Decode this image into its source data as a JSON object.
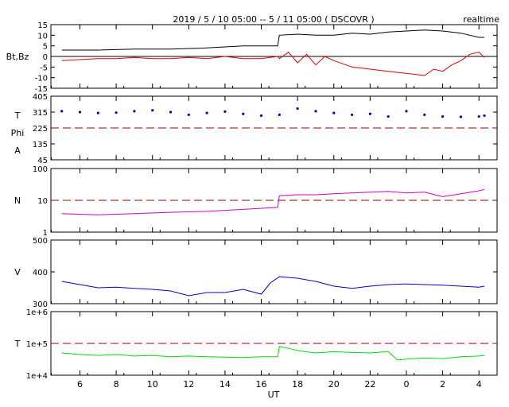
{
  "title": "2019 / 5 / 10   05:00 -- 5 / 11   05:00 ( DSCOVR )",
  "badge": "realtime",
  "xlabel": "UT",
  "x_ticks": [
    "6",
    "8",
    "10",
    "12",
    "14",
    "16",
    "18",
    "20",
    "22",
    "0",
    "2",
    "4"
  ],
  "chart_data": [
    {
      "type": "line",
      "name_label": "Bt,Bz",
      "x_unit": "hours since 05:00 UT",
      "ylim": [
        -15,
        15
      ],
      "y_ticks": [
        "15",
        "10",
        "5",
        "0",
        "-5",
        "-10",
        "-15"
      ],
      "ref_line": 0,
      "series": [
        {
          "name": "Bt",
          "color": "#000000",
          "x": [
            0,
            2,
            4,
            6,
            8,
            10,
            11.9,
            12.0,
            13,
            14,
            15,
            16,
            17,
            18,
            19,
            20,
            21,
            22,
            23,
            23.3
          ],
          "values": [
            3,
            3,
            3.5,
            3.5,
            4,
            5,
            5,
            10,
            10.5,
            10,
            10,
            11,
            10.5,
            11.5,
            12,
            12.5,
            12,
            11,
            9,
            9
          ]
        },
        {
          "name": "Bz",
          "color": "#dd0000",
          "x": [
            0,
            1,
            2,
            3,
            4,
            5,
            6,
            7,
            8,
            9,
            10,
            11,
            11.9,
            12.0,
            12.5,
            13,
            13.5,
            14,
            14.5,
            15,
            16,
            17,
            18,
            19,
            20,
            20.5,
            21,
            21.5,
            22,
            22.5,
            23,
            23.3
          ],
          "values": [
            -2,
            -1.5,
            -1,
            -1,
            -0.5,
            -1,
            -1,
            -0.5,
            -1,
            0,
            -1,
            -1,
            0,
            -1,
            2,
            -3,
            1,
            -4,
            0,
            -2,
            -5,
            -6,
            -7,
            -8,
            -9,
            -6,
            -7,
            -4,
            -2,
            1,
            2,
            -0.5
          ]
        }
      ]
    },
    {
      "type": "scatter",
      "name_label": [
        "T",
        "Phi",
        "A"
      ],
      "ylim": [
        45,
        405
      ],
      "y_ticks": [
        "405",
        "315",
        "225",
        "135",
        "45"
      ],
      "ref_line": 225,
      "series": [
        {
          "name": "Phi",
          "color": "#0000cc",
          "x": [
            0,
            1,
            2,
            3,
            4,
            5,
            6,
            7,
            8,
            9,
            10,
            11,
            12,
            13,
            14,
            15,
            16,
            17,
            18,
            19,
            20,
            21,
            22,
            23,
            23.3
          ],
          "values": [
            320,
            315,
            310,
            312,
            320,
            325,
            315,
            300,
            310,
            318,
            305,
            295,
            300,
            335,
            320,
            310,
            300,
            305,
            290,
            320,
            300,
            290,
            288,
            290,
            295
          ]
        }
      ]
    },
    {
      "type": "line",
      "name_label": "N",
      "scale": "log",
      "ylim": [
        1,
        100
      ],
      "y_ticks": [
        "100",
        "10",
        "1"
      ],
      "ref_line": 10,
      "series": [
        {
          "name": "N",
          "color": "#cc00cc",
          "x": [
            0,
            2,
            4,
            6,
            8,
            10,
            11.9,
            12.0,
            13,
            14,
            15,
            16,
            17,
            18,
            19,
            20,
            21,
            22,
            23,
            23.3
          ],
          "values": [
            3.8,
            3.5,
            3.8,
            4.2,
            4.5,
            5.2,
            6.0,
            14,
            15,
            15,
            16,
            17,
            18,
            19,
            17,
            18,
            13,
            16,
            20,
            22
          ]
        }
      ]
    },
    {
      "type": "line",
      "name_label": "V",
      "ylim": [
        300,
        500
      ],
      "y_ticks": [
        "500",
        "400",
        "300"
      ],
      "series": [
        {
          "name": "V",
          "color": "#0000cc",
          "x": [
            0,
            1,
            2,
            3,
            4,
            5,
            6,
            7,
            8,
            9,
            10,
            11,
            11.5,
            12,
            13,
            14,
            15,
            16,
            17,
            18,
            19,
            20,
            21,
            22,
            23,
            23.3
          ],
          "values": [
            370,
            360,
            350,
            352,
            348,
            345,
            340,
            325,
            335,
            335,
            345,
            330,
            365,
            385,
            380,
            370,
            355,
            348,
            355,
            360,
            362,
            360,
            358,
            355,
            352,
            355
          ]
        }
      ]
    },
    {
      "type": "line",
      "name_label": "T",
      "scale": "log",
      "ylim": [
        10000,
        1000000
      ],
      "y_ticks": [
        "1e+6",
        "1e+5",
        "1e+4"
      ],
      "ref_line": 100000,
      "series": [
        {
          "name": "T",
          "color": "#00dd00",
          "x": [
            0,
            1,
            2,
            3,
            4,
            5,
            6,
            7,
            8,
            9,
            10,
            11,
            11.9,
            12.0,
            12.5,
            13,
            14,
            15,
            16,
            17,
            18,
            18.5,
            19,
            20,
            21,
            22,
            23,
            23.3
          ],
          "values": [
            50000,
            45000,
            42000,
            45000,
            40000,
            42000,
            38000,
            40000,
            38000,
            37000,
            36000,
            38000,
            38000,
            80000,
            70000,
            60000,
            50000,
            55000,
            52000,
            50000,
            55000,
            30000,
            32000,
            35000,
            33000,
            38000,
            40000,
            42000
          ]
        }
      ]
    }
  ]
}
